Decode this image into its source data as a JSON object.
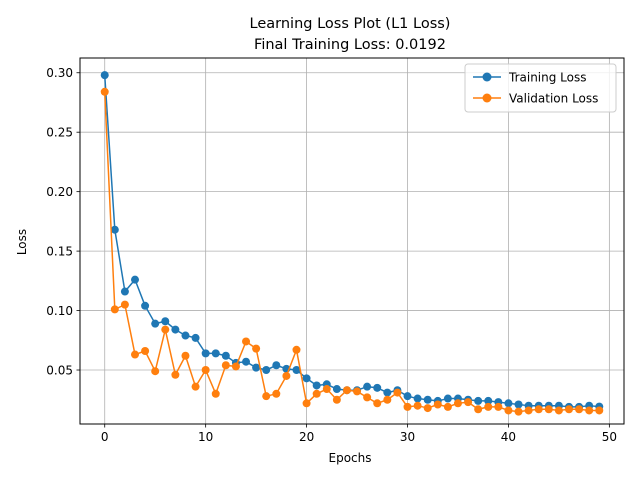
{
  "chart_data": {
    "type": "line",
    "title_line1": "Learning Loss Plot (L1 Loss)",
    "title_line2": "Final Training Loss: 0.0192",
    "xlabel": "Epochs",
    "ylabel": "Loss",
    "xlim": [
      -2.45,
      51.45
    ],
    "ylim": [
      0.0046,
      0.3124
    ],
    "x_ticks": [
      0,
      10,
      20,
      30,
      40,
      50
    ],
    "y_ticks": [
      0.05,
      0.1,
      0.15,
      0.2,
      0.25,
      0.3
    ],
    "y_tick_labels": [
      "0.05",
      "0.10",
      "0.15",
      "0.20",
      "0.25",
      "0.30"
    ],
    "grid": true,
    "legend_position": "top-right",
    "x": [
      0,
      1,
      2,
      3,
      4,
      5,
      6,
      7,
      8,
      9,
      10,
      11,
      12,
      13,
      14,
      15,
      16,
      17,
      18,
      19,
      20,
      21,
      22,
      23,
      24,
      25,
      26,
      27,
      28,
      29,
      30,
      31,
      32,
      33,
      34,
      35,
      36,
      37,
      38,
      39,
      40,
      41,
      42,
      43,
      44,
      45,
      46,
      47,
      48,
      49
    ],
    "series": [
      {
        "name": "Training Loss",
        "color": "#1f77b4",
        "values": [
          0.298,
          0.168,
          0.116,
          0.126,
          0.104,
          0.089,
          0.091,
          0.084,
          0.079,
          0.077,
          0.064,
          0.064,
          0.062,
          0.056,
          0.057,
          0.052,
          0.05,
          0.054,
          0.051,
          0.05,
          0.043,
          0.037,
          0.038,
          0.034,
          0.033,
          0.033,
          0.036,
          0.035,
          0.031,
          0.033,
          0.028,
          0.026,
          0.025,
          0.024,
          0.026,
          0.026,
          0.025,
          0.024,
          0.024,
          0.023,
          0.022,
          0.021,
          0.02,
          0.02,
          0.02,
          0.02,
          0.019,
          0.019,
          0.02,
          0.0192
        ]
      },
      {
        "name": "Validation Loss",
        "color": "#ff7f0e",
        "values": [
          0.284,
          0.101,
          0.105,
          0.063,
          0.066,
          0.049,
          0.084,
          0.046,
          0.062,
          0.036,
          0.05,
          0.03,
          0.054,
          0.053,
          0.074,
          0.068,
          0.028,
          0.03,
          0.045,
          0.067,
          0.022,
          0.03,
          0.034,
          0.025,
          0.033,
          0.032,
          0.027,
          0.022,
          0.025,
          0.031,
          0.019,
          0.02,
          0.018,
          0.021,
          0.019,
          0.022,
          0.023,
          0.017,
          0.019,
          0.019,
          0.016,
          0.015,
          0.016,
          0.017,
          0.017,
          0.016,
          0.017,
          0.017,
          0.016,
          0.016
        ]
      }
    ]
  }
}
